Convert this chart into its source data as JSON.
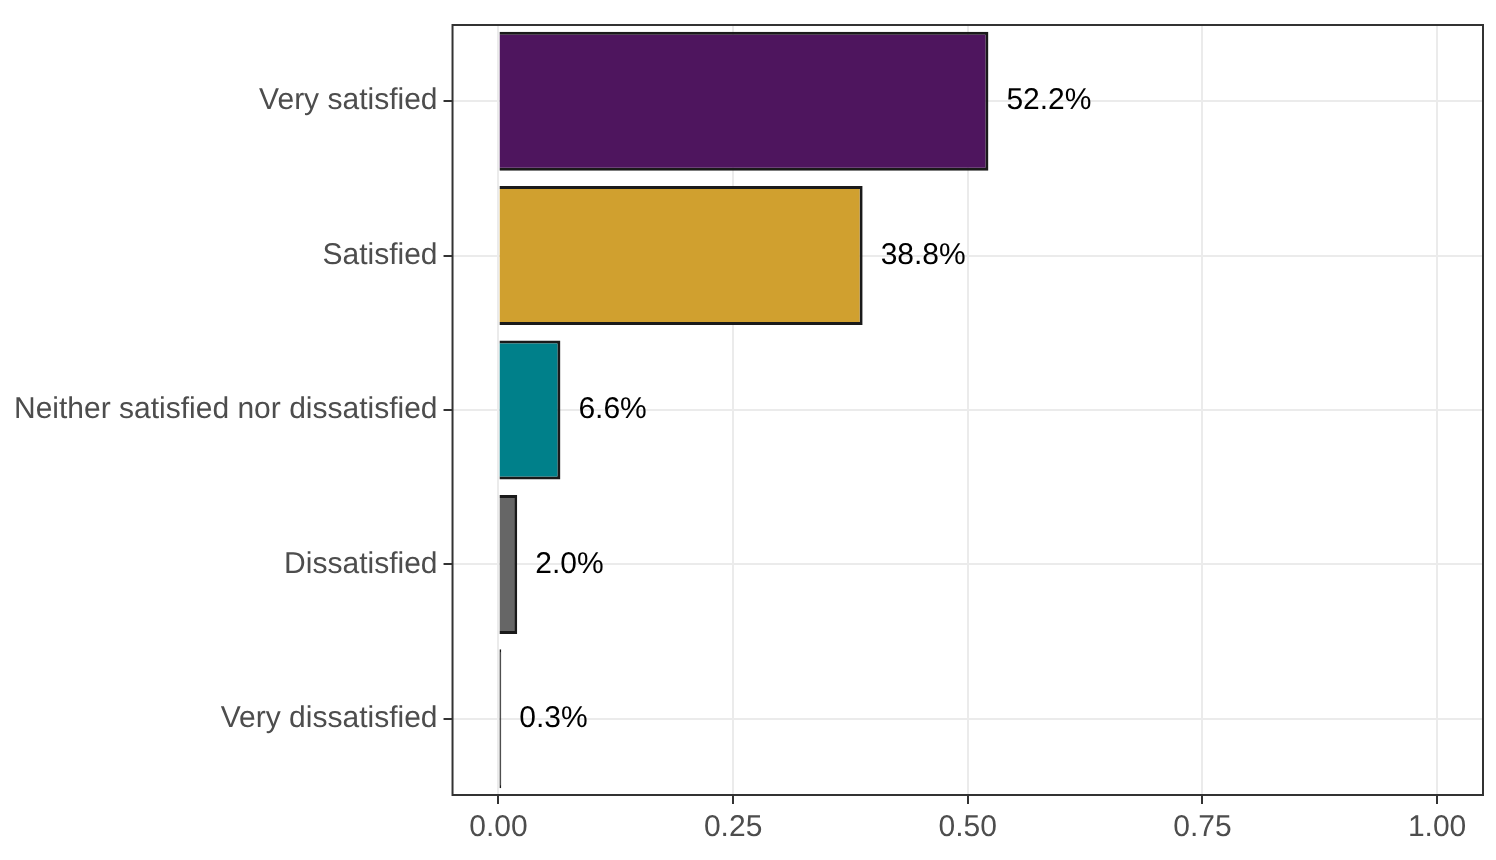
{
  "chart_data": {
    "type": "bar",
    "orientation": "horizontal",
    "categories": [
      "Very satisfied",
      "Satisfied",
      "Neither satisfied nor dissatisfied",
      "Dissatisfied",
      "Very dissatisfied"
    ],
    "values": [
      0.522,
      0.388,
      0.066,
      0.02,
      0.003
    ],
    "colors": [
      "#4e155e",
      "#d0a02f",
      "#00808a",
      "#666666",
      "#1a1a1a"
    ],
    "value_labels": [
      "52.2%",
      "38.8%",
      "6.6%",
      "2.0%",
      "0.3%"
    ],
    "xlim": [
      -0.05,
      1.05
    ],
    "xticks": [
      {
        "value": 0,
        "label": "0.00"
      },
      {
        "value": 0.25,
        "label": "0.25"
      },
      {
        "value": 0.5,
        "label": "0.50"
      },
      {
        "value": 0.75,
        "label": "0.75"
      },
      {
        "value": 1,
        "label": "1.00"
      }
    ],
    "grid": true,
    "legend": false
  }
}
